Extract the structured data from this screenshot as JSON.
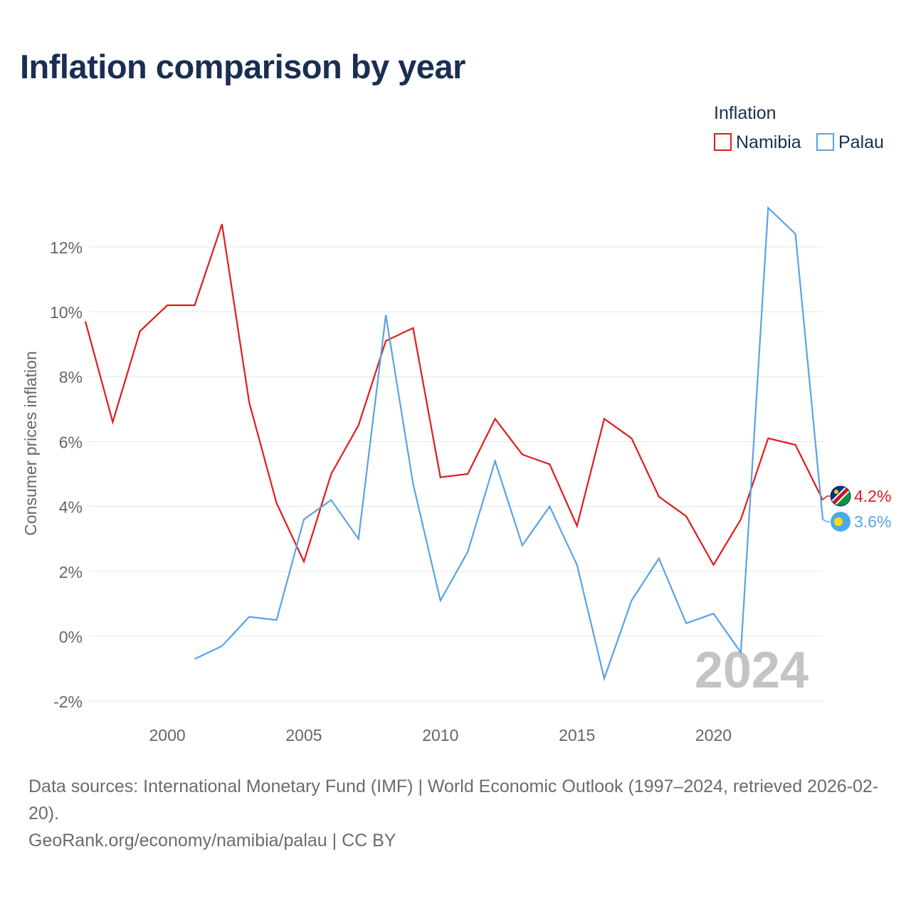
{
  "chart_data": {
    "type": "line",
    "title": "Inflation comparison by year",
    "xlabel": "",
    "ylabel": "Consumer prices inflation",
    "xlim": [
      1997,
      2024
    ],
    "ylim": [
      -2.2,
      13.5
    ],
    "x_ticks": [
      2000,
      2005,
      2010,
      2015,
      2020
    ],
    "y_ticks": [
      -2,
      0,
      2,
      4,
      6,
      8,
      10,
      12
    ],
    "y_tick_labels": [
      "-2%",
      "0%",
      "2%",
      "4%",
      "6%",
      "8%",
      "10%",
      "12%"
    ],
    "grid": true,
    "legend": {
      "title": "Inflation",
      "position": "top-right",
      "entries": [
        "Namibia",
        "Palau"
      ]
    },
    "year_watermark": "2024",
    "series": [
      {
        "name": "Namibia",
        "color": "#e31a1c",
        "end_label": "4.2%",
        "points": [
          [
            1997,
            9.7
          ],
          [
            1998,
            6.6
          ],
          [
            1999,
            9.4
          ],
          [
            2000,
            10.2
          ],
          [
            2001,
            10.2
          ],
          [
            2002,
            12.7
          ],
          [
            2003,
            7.2
          ],
          [
            2004,
            4.1
          ],
          [
            2005,
            2.3
          ],
          [
            2006,
            5.0
          ],
          [
            2007,
            6.5
          ],
          [
            2008,
            9.1
          ],
          [
            2009,
            9.5
          ],
          [
            2010,
            4.9
          ],
          [
            2011,
            5.0
          ],
          [
            2012,
            6.7
          ],
          [
            2013,
            5.6
          ],
          [
            2014,
            5.3
          ],
          [
            2015,
            3.4
          ],
          [
            2016,
            6.7
          ],
          [
            2017,
            6.1
          ],
          [
            2018,
            4.3
          ],
          [
            2019,
            3.7
          ],
          [
            2020,
            2.2
          ],
          [
            2021,
            3.6
          ],
          [
            2022,
            6.1
          ],
          [
            2023,
            5.9
          ],
          [
            2024,
            4.2
          ]
        ]
      },
      {
        "name": "Palau",
        "color": "#5aa2e6",
        "end_label": "3.6%",
        "points": [
          [
            2001,
            -0.7
          ],
          [
            2002,
            -0.3
          ],
          [
            2003,
            0.6
          ],
          [
            2004,
            0.5
          ],
          [
            2005,
            3.6
          ],
          [
            2006,
            4.2
          ],
          [
            2007,
            3.0
          ],
          [
            2008,
            9.9
          ],
          [
            2009,
            4.7
          ],
          [
            2010,
            1.1
          ],
          [
            2011,
            2.6
          ],
          [
            2012,
            5.4
          ],
          [
            2013,
            2.8
          ],
          [
            2014,
            4.0
          ],
          [
            2015,
            2.2
          ],
          [
            2016,
            -1.3
          ],
          [
            2017,
            1.1
          ],
          [
            2018,
            2.4
          ],
          [
            2019,
            0.4
          ],
          [
            2020,
            0.7
          ],
          [
            2021,
            -0.5
          ],
          [
            2022,
            13.2
          ],
          [
            2023,
            12.4
          ],
          [
            2024,
            3.6
          ]
        ]
      }
    ]
  },
  "footer": {
    "sources": "Data sources: International Monetary Fund (IMF) | World Economic Outlook (1997–2024, retrieved 2026-02-20).",
    "attribution": "GeoRank.org/economy/namibia/palau | CC BY"
  }
}
